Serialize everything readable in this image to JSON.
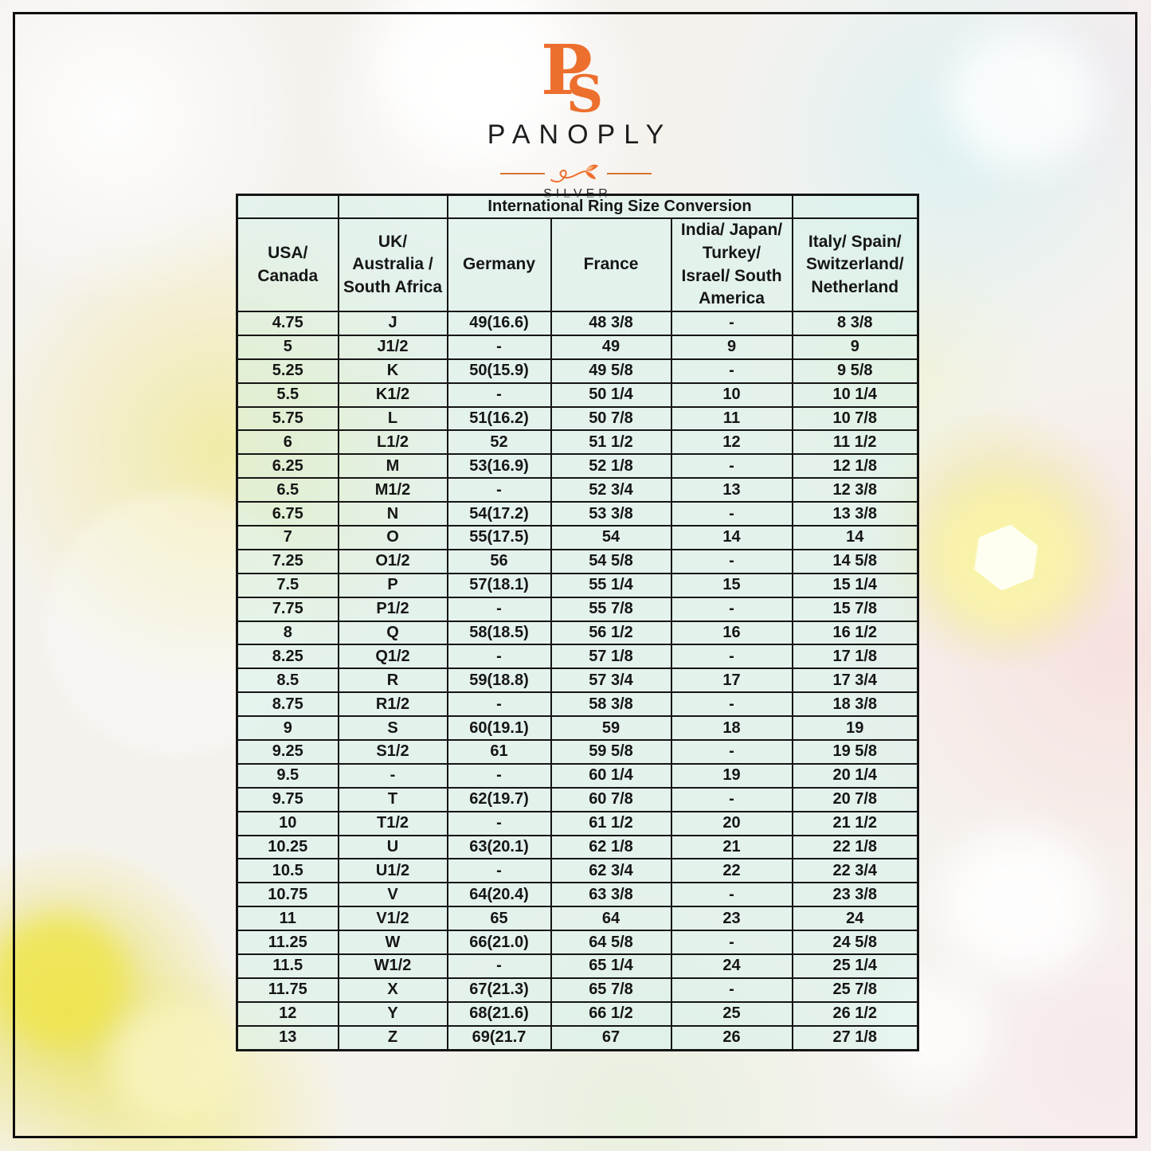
{
  "brand": {
    "monogram": "PS",
    "name": "PANOPLY",
    "subtitle": "SILVER",
    "accent_color": "#ED6F2E",
    "frame_color": "#0e0e0e",
    "table_tint": "#e3f4ee"
  },
  "chart_data": {
    "type": "table",
    "title": "International Ring Size Conversion",
    "columns": [
      "USA/\nCanada",
      "UK/\nAustralia /\nSouth Africa",
      "Germany",
      "France",
      "India/ Japan/\nTurkey/\nIsrael/ South\nAmerica",
      "Italy/ Spain/\nSwitzerland/\nNetherland"
    ],
    "rows": [
      [
        "4.75",
        "J",
        "49(16.6)",
        "48 3/8",
        "-",
        "8 3/8"
      ],
      [
        "5",
        "J1/2",
        "-",
        "49",
        "9",
        "9"
      ],
      [
        "5.25",
        "K",
        "50(15.9)",
        "49 5/8",
        "-",
        "9 5/8"
      ],
      [
        "5.5",
        "K1/2",
        "-",
        "50 1/4",
        "10",
        "10 1/4"
      ],
      [
        "5.75",
        "L",
        "51(16.2)",
        "50 7/8",
        "11",
        "10 7/8"
      ],
      [
        "6",
        "L1/2",
        "52",
        "51 1/2",
        "12",
        "11 1/2"
      ],
      [
        "6.25",
        "M",
        "53(16.9)",
        "52 1/8",
        "-",
        "12 1/8"
      ],
      [
        "6.5",
        "M1/2",
        "-",
        "52 3/4",
        "13",
        "12 3/8"
      ],
      [
        "6.75",
        "N",
        "54(17.2)",
        "53 3/8",
        "-",
        "13 3/8"
      ],
      [
        "7",
        "O",
        "55(17.5)",
        "54",
        "14",
        "14"
      ],
      [
        "7.25",
        "O1/2",
        "56",
        "54 5/8",
        "-",
        "14 5/8"
      ],
      [
        "7.5",
        "P",
        "57(18.1)",
        "55 1/4",
        "15",
        "15 1/4"
      ],
      [
        "7.75",
        "P1/2",
        "-",
        "55 7/8",
        "-",
        "15 7/8"
      ],
      [
        "8",
        "Q",
        "58(18.5)",
        "56 1/2",
        "16",
        "16 1/2"
      ],
      [
        "8.25",
        "Q1/2",
        "-",
        "57 1/8",
        "-",
        "17 1/8"
      ],
      [
        "8.5",
        "R",
        "59(18.8)",
        "57 3/4",
        "17",
        "17 3/4"
      ],
      [
        "8.75",
        "R1/2",
        "-",
        "58 3/8",
        "-",
        "18 3/8"
      ],
      [
        "9",
        "S",
        "60(19.1)",
        "59",
        "18",
        "19"
      ],
      [
        "9.25",
        "S1/2",
        "61",
        "59 5/8",
        "-",
        "19 5/8"
      ],
      [
        "9.5",
        "-",
        "-",
        "60 1/4",
        "19",
        "20 1/4"
      ],
      [
        "9.75",
        "T",
        "62(19.7)",
        "60 7/8",
        "-",
        "20 7/8"
      ],
      [
        "10",
        "T1/2",
        "-",
        "61 1/2",
        "20",
        "21 1/2"
      ],
      [
        "10.25",
        "U",
        "63(20.1)",
        "62 1/8",
        "21",
        "22 1/8"
      ],
      [
        "10.5",
        "U1/2",
        "-",
        "62 3/4",
        "22",
        "22 3/4"
      ],
      [
        "10.75",
        "V",
        "64(20.4)",
        "63 3/8",
        "-",
        "23 3/8"
      ],
      [
        "11",
        "V1/2",
        "65",
        "64",
        "23",
        "24"
      ],
      [
        "11.25",
        "W",
        "66(21.0)",
        "64 5/8",
        "-",
        "24 5/8"
      ],
      [
        "11.5",
        "W1/2",
        "-",
        "65 1/4",
        "24",
        "25 1/4"
      ],
      [
        "11.75",
        "X",
        "67(21.3)",
        "65 7/8",
        "-",
        "25 7/8"
      ],
      [
        "12",
        "Y",
        "68(21.6)",
        "66 1/2",
        "25",
        "26 1/2"
      ],
      [
        "13",
        "Z",
        "69(21.7",
        "67",
        "26",
        "27 1/8"
      ]
    ]
  }
}
